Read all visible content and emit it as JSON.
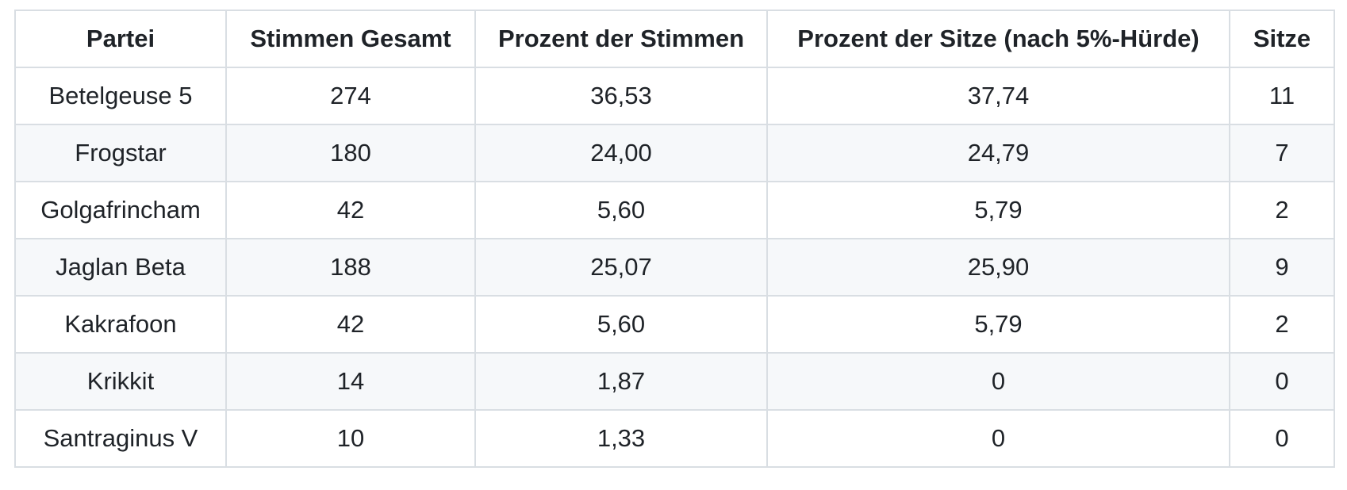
{
  "chart_data": {
    "type": "table",
    "title": "",
    "columns": [
      "Partei",
      "Stimmen Gesamt",
      "Prozent der Stimmen",
      "Prozent der Sitze (nach 5%-Hürde)",
      "Sitze"
    ],
    "rows": [
      [
        "Betelgeuse 5",
        "274",
        "36,53",
        "37,74",
        "11"
      ],
      [
        "Frogstar",
        "180",
        "24,00",
        "24,79",
        "7"
      ],
      [
        "Golgafrincham",
        "42",
        "5,60",
        "5,79",
        "2"
      ],
      [
        "Jaglan Beta",
        "188",
        "25,07",
        "25,90",
        "9"
      ],
      [
        "Kakrafoon",
        "42",
        "5,60",
        "5,79",
        "2"
      ],
      [
        "Krikkit",
        "14",
        "1,87",
        "0",
        "0"
      ],
      [
        "Santraginus V",
        "10",
        "1,33",
        "0",
        "0"
      ]
    ],
    "layout": {
      "zebra_striping": "even data rows shaded",
      "cell_alignment": "center",
      "grid_on": true
    }
  },
  "colors": {
    "border": "#d9dee3",
    "stripe_background": "#f6f8fa",
    "row_background": "#ffffff",
    "text": "#1f2328",
    "page_background": "#ffffff"
  }
}
